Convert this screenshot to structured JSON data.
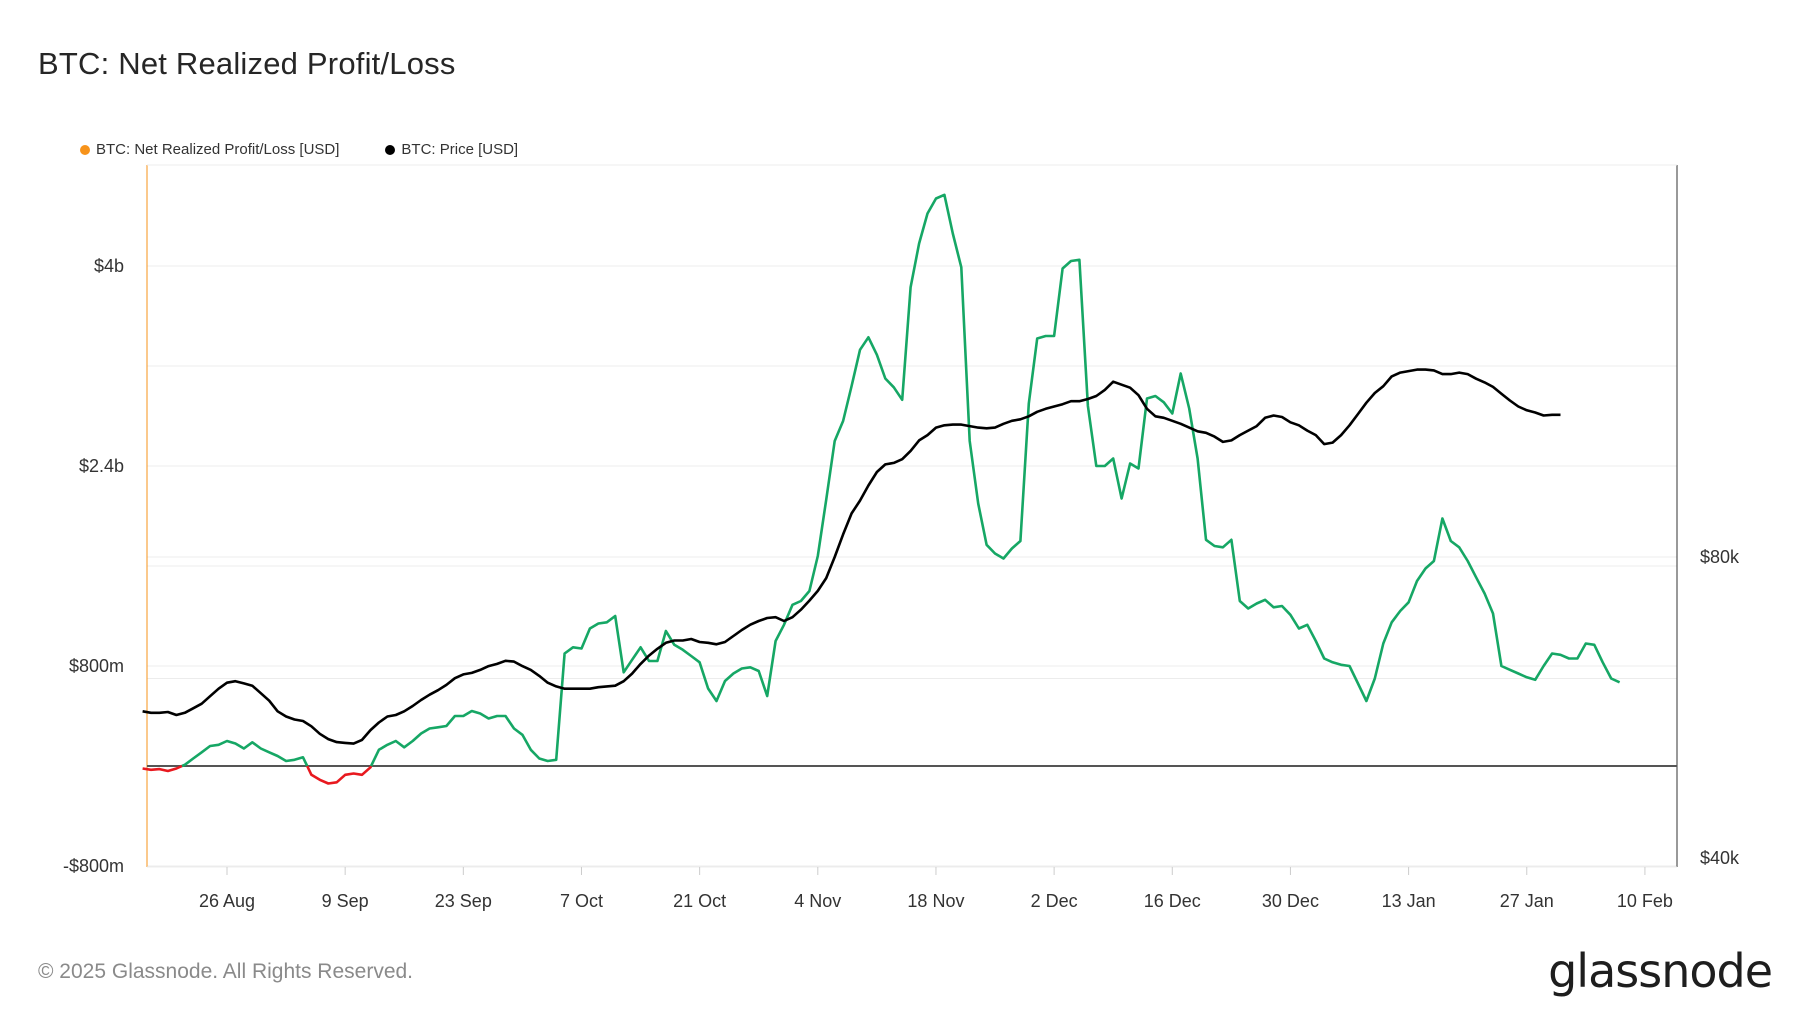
{
  "title": "BTC: Net Realized Profit/Loss",
  "legend": [
    {
      "label": "BTC: Net Realized Profit/Loss [USD]",
      "color": "#f7931a"
    },
    {
      "label": "BTC: Price [USD]",
      "color": "#000000"
    }
  ],
  "footer": "© 2025 Glassnode. All Rights Reserved.",
  "logo": "glassnode",
  "colors": {
    "positive": "#16a765",
    "negative": "#e8191f",
    "price": "#000000",
    "zero_line": "#555555",
    "grid": "#ececec"
  },
  "chart_data": {
    "type": "line",
    "x_ticks": [
      "26 Aug",
      "9 Sep",
      "23 Sep",
      "7 Oct",
      "21 Oct",
      "4 Nov",
      "18 Nov",
      "2 Dec",
      "16 Dec",
      "30 Dec",
      "13 Jan",
      "27 Jan",
      "10 Feb"
    ],
    "y_left_ticks": [
      "-$800m",
      "$800m",
      "$2.4b",
      "$4b"
    ],
    "y_right_ticks": [
      "$40k",
      "$80k"
    ],
    "y_left_range": [
      -800,
      4800
    ],
    "y_right_range": [
      40000,
      140000
    ],
    "series": [
      {
        "name": "BTC: Net Realized Profit/Loss [USD]",
        "axis": "left",
        "unit": "USD millions",
        "x_start": "2024-08-16",
        "step_days": 1,
        "values": [
          -20,
          -30,
          -25,
          -40,
          -20,
          10,
          60,
          110,
          160,
          170,
          200,
          180,
          140,
          190,
          140,
          110,
          80,
          40,
          50,
          70,
          -70,
          -110,
          -140,
          -130,
          -70,
          -60,
          -70,
          -10,
          130,
          170,
          200,
          150,
          200,
          260,
          300,
          310,
          320,
          400,
          400,
          440,
          420,
          380,
          400,
          400,
          300,
          250,
          130,
          60,
          40,
          50,
          900,
          950,
          940,
          1100,
          1140,
          1150,
          1200,
          750,
          850,
          950,
          840,
          840,
          1080,
          970,
          930,
          880,
          830,
          620,
          520,
          680,
          740,
          780,
          790,
          760,
          560,
          1000,
          1130,
          1290,
          1320,
          1400,
          1680,
          2130,
          2600,
          2760,
          3040,
          3330,
          3430,
          3290,
          3100,
          3030,
          2930,
          3830,
          4180,
          4420,
          4540,
          4570,
          4260,
          3990,
          2600,
          2100,
          1770,
          1700,
          1660,
          1740,
          1800,
          2900,
          3420,
          3440,
          3440,
          3980,
          4040,
          4050,
          2880,
          2400,
          2400,
          2460,
          2140,
          2420,
          2380,
          2940,
          2960,
          2910,
          2820,
          3140,
          2860,
          2460,
          1810,
          1760,
          1750,
          1810,
          1320,
          1260,
          1300,
          1330,
          1270,
          1280,
          1210,
          1100,
          1130,
          1000,
          860,
          830,
          810,
          800,
          660,
          520,
          700,
          980,
          1150,
          1240,
          1310,
          1480,
          1580,
          1640,
          1980,
          1800,
          1750,
          1640,
          1510,
          1380,
          1220,
          800,
          770,
          740,
          710,
          690,
          800,
          900,
          890,
          860,
          860,
          980,
          970,
          830,
          700,
          670
        ]
      },
      {
        "name": "BTC: Price [USD]",
        "axis": "right",
        "unit": "USD",
        "x_start": "2024-08-16",
        "step_days": 1,
        "values": [
          59500,
          59300,
          59300,
          59400,
          59000,
          59300,
          59900,
          60500,
          61500,
          62500,
          63300,
          63500,
          63200,
          62900,
          61900,
          60900,
          59500,
          58800,
          58400,
          58200,
          57500,
          56500,
          55800,
          55400,
          55300,
          55200,
          55700,
          57000,
          58000,
          58800,
          59000,
          59500,
          60200,
          61000,
          61700,
          62300,
          63000,
          63900,
          64400,
          64600,
          65000,
          65500,
          65800,
          66200,
          66100,
          65500,
          65000,
          64200,
          63300,
          62800,
          62500,
          62500,
          62500,
          62500,
          62700,
          62800,
          62900,
          63500,
          64500,
          65800,
          66900,
          67800,
          68600,
          68900,
          68900,
          69100,
          68700,
          68600,
          68400,
          68700,
          69500,
          70300,
          71000,
          71500,
          71900,
          72000,
          71500,
          72000,
          73000,
          74200,
          75500,
          77200,
          80000,
          83000,
          85800,
          87500,
          89500,
          91300,
          92300,
          92500,
          93000,
          94100,
          95500,
          96200,
          97200,
          97500,
          97600,
          97600,
          97400,
          97200,
          97100,
          97200,
          97700,
          98100,
          98300,
          98700,
          99300,
          99700,
          100000,
          100300,
          100700,
          100700,
          101000,
          101400,
          102200,
          103300,
          102900,
          102500,
          101500,
          99700,
          98700,
          98500,
          98100,
          97700,
          97200,
          96700,
          96500,
          96000,
          95300,
          95500,
          96200,
          96800,
          97400,
          98500,
          98800,
          98600,
          97900,
          97500,
          96800,
          96200,
          95000,
          95200,
          96200,
          97500,
          99000,
          100500,
          101800,
          102700,
          104000,
          104500,
          104700,
          104900,
          104900,
          104800,
          104300,
          104300,
          104500,
          104300,
          103700,
          103200,
          102600,
          101700,
          100800,
          100000,
          99500,
          99200,
          98800,
          98900,
          98900
        ]
      }
    ]
  }
}
